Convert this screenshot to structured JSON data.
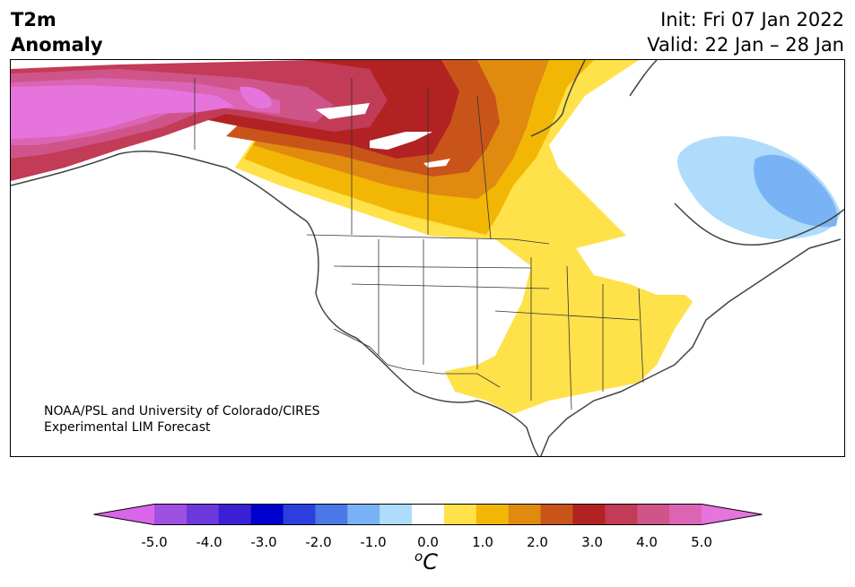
{
  "title": {
    "left_line1": "T2m",
    "left_line2": "Anomaly",
    "init": "Init: Fri 07 Jan 2022",
    "valid": "Valid: 22 Jan – 28 Jan"
  },
  "credit": {
    "line1": "NOAA/PSL and University of Colorado/CIRES",
    "line2": "Experimental LIM Forecast"
  },
  "colorbar": {
    "unit_super": "o",
    "unit": "C",
    "colors": [
      "#d966e8",
      "#9f50e0",
      "#6a38dd",
      "#3a1fd4",
      "#0000cc",
      "#2a3fdd",
      "#4b78e6",
      "#7ab3f5",
      "#aedcfa",
      "#ffffff",
      "#ffe14a",
      "#f2b705",
      "#e08a10",
      "#c9541a",
      "#b22222",
      "#c23b57",
      "#cf5489",
      "#dc64b5",
      "#e575dd"
    ],
    "tick_labels": [
      "-5.0",
      "-4.0",
      "-3.0",
      "-2.0",
      "-1.0",
      "0.0",
      "1.0",
      "2.0",
      "3.0",
      "4.0",
      "5.0"
    ]
  },
  "anomaly_colors": {
    "warm_1": "#ffe14a",
    "warm_2": "#f2b705",
    "warm_3": "#e08a10",
    "warm_4": "#c9541a",
    "warm_5": "#b22222",
    "warm_6": "#c23b57",
    "warm_7": "#cf5489",
    "warm_8": "#dc64b5",
    "warm_9": "#e575dd",
    "cool_1": "#aedcfa",
    "cool_2": "#7ab3f5"
  }
}
